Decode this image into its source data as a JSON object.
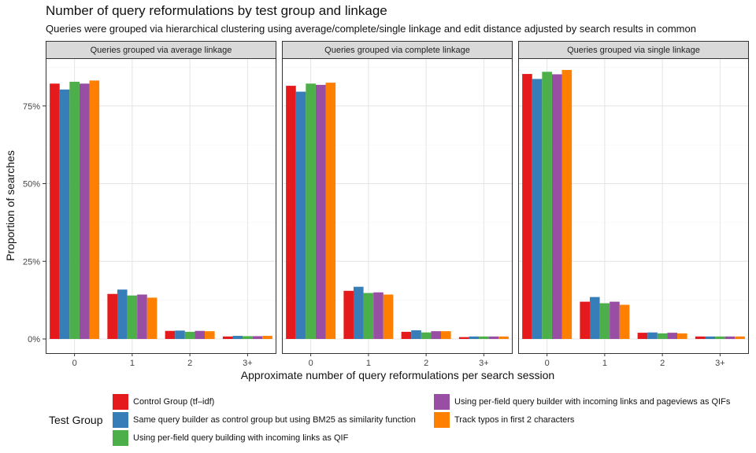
{
  "chart_data": {
    "type": "bar",
    "title": "Number of query reformulations by test group and linkage",
    "subtitle": "Queries were grouped via hierarchical clustering using average/complete/single linkage and edit distance adjusted by search results in common",
    "xlabel": "Approximate number of query reformulations per search session",
    "ylabel": "Proportion of searches",
    "ylim": [
      0,
      0.88
    ],
    "yticks": [
      0,
      0.25,
      0.5,
      0.75
    ],
    "ytick_labels": [
      "0%",
      "25%",
      "50%",
      "75%"
    ],
    "categories": [
      "0",
      "1",
      "2",
      "3+"
    ],
    "grid": true,
    "legend": {
      "title": "Test Group",
      "position": "bottom"
    },
    "series": [
      {
        "name": "Control Group (tf–idf)",
        "color": "#E41A1C"
      },
      {
        "name": "Same query builder as control group but using BM25 as similarity function",
        "color": "#377EB8"
      },
      {
        "name": "Using per-field query building with incoming links as QIF",
        "color": "#4DAF4A"
      },
      {
        "name": "Using per-field query builder with incoming links and pageviews as QIFs",
        "color": "#984EA3"
      },
      {
        "name": "Track typos in first 2 characters",
        "color": "#FF7F00"
      }
    ],
    "panels": [
      {
        "label": "Queries grouped via average linkage",
        "values": [
          [
            0.822,
            0.145,
            0.026,
            0.008
          ],
          [
            0.803,
            0.159,
            0.027,
            0.01
          ],
          [
            0.828,
            0.14,
            0.023,
            0.009
          ],
          [
            0.822,
            0.143,
            0.026,
            0.009
          ],
          [
            0.832,
            0.133,
            0.025,
            0.01
          ]
        ]
      },
      {
        "label": "Queries grouped via complete linkage",
        "values": [
          [
            0.815,
            0.155,
            0.023,
            0.006
          ],
          [
            0.796,
            0.168,
            0.028,
            0.008
          ],
          [
            0.822,
            0.148,
            0.021,
            0.008
          ],
          [
            0.818,
            0.15,
            0.025,
            0.008
          ],
          [
            0.825,
            0.143,
            0.025,
            0.008
          ]
        ]
      },
      {
        "label": "Queries grouped via single linkage",
        "values": [
          [
            0.853,
            0.12,
            0.02,
            0.008
          ],
          [
            0.837,
            0.135,
            0.021,
            0.008
          ],
          [
            0.86,
            0.115,
            0.018,
            0.008
          ],
          [
            0.852,
            0.12,
            0.02,
            0.008
          ],
          [
            0.866,
            0.11,
            0.018,
            0.008
          ]
        ]
      }
    ]
  }
}
